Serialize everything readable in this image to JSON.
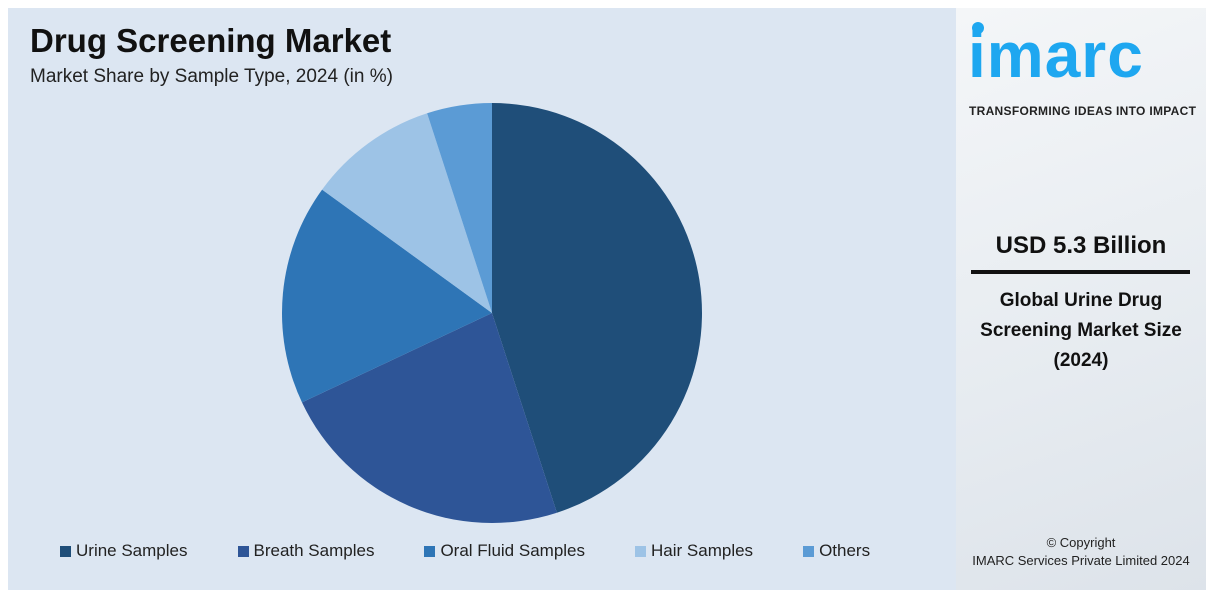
{
  "chart_data": {
    "type": "pie",
    "title": "Drug Screening Market",
    "subtitle": "Market Share by Sample Type, 2024 (in %)",
    "categories": [
      "Urine Samples",
      "Breath Samples",
      "Oral Fluid Samples",
      "Hair Samples",
      "Others"
    ],
    "values": [
      45,
      23,
      17,
      10,
      5
    ],
    "colors": [
      "#1f4e79",
      "#2e5597",
      "#2e75b6",
      "#9dc3e6",
      "#5b9bd5"
    ],
    "start": "top, clockwise",
    "legend_position": "bottom"
  },
  "side": {
    "logo_text": "imarc",
    "tagline": "TRANSFORMING IDEAS INTO IMPACT",
    "value": "USD 5.3 Billion",
    "description_lines": [
      "Global Urine Drug",
      "Screening Market Size",
      "(2024)"
    ],
    "copyright": "© Copyright",
    "company": "IMARC Services Private Limited 2024",
    "brand_color": "#1ea7f0"
  }
}
